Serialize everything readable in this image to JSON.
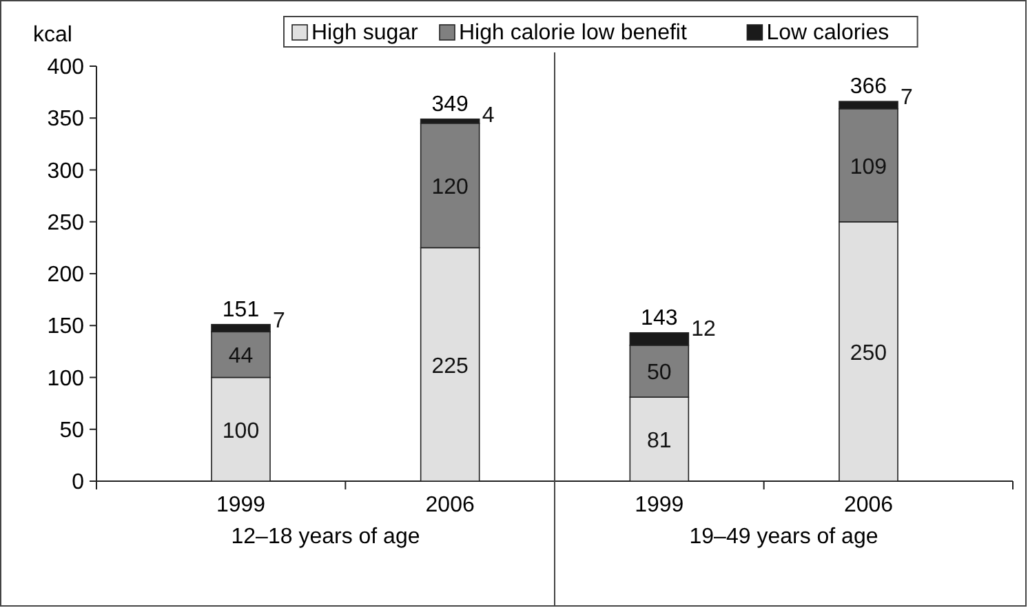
{
  "chart_data": {
    "type": "bar",
    "stacked": true,
    "ylabel": "kcal",
    "categories": [
      "1999",
      "2006",
      "1999",
      "2006"
    ],
    "series": [
      {
        "name": "High sugar",
        "color": "#e0e0e0",
        "values": [
          100,
          225,
          81,
          250
        ]
      },
      {
        "name": "High calorie low benefit",
        "color": "#808080",
        "values": [
          44,
          120,
          50,
          109
        ]
      },
      {
        "name": "Low calories",
        "color": "#1a1a1a",
        "values": [
          7,
          4,
          12,
          7
        ]
      }
    ],
    "totals": [
      "151",
      "349",
      "143",
      "366"
    ],
    "data_labels": true,
    "ylim": [
      0,
      400
    ],
    "yticks": [
      0,
      50,
      100,
      150,
      200,
      250,
      300,
      350,
      400
    ],
    "grid": false,
    "legend": "top",
    "annotations": [
      "12–18 years of age",
      "19–49 years of age"
    ]
  }
}
